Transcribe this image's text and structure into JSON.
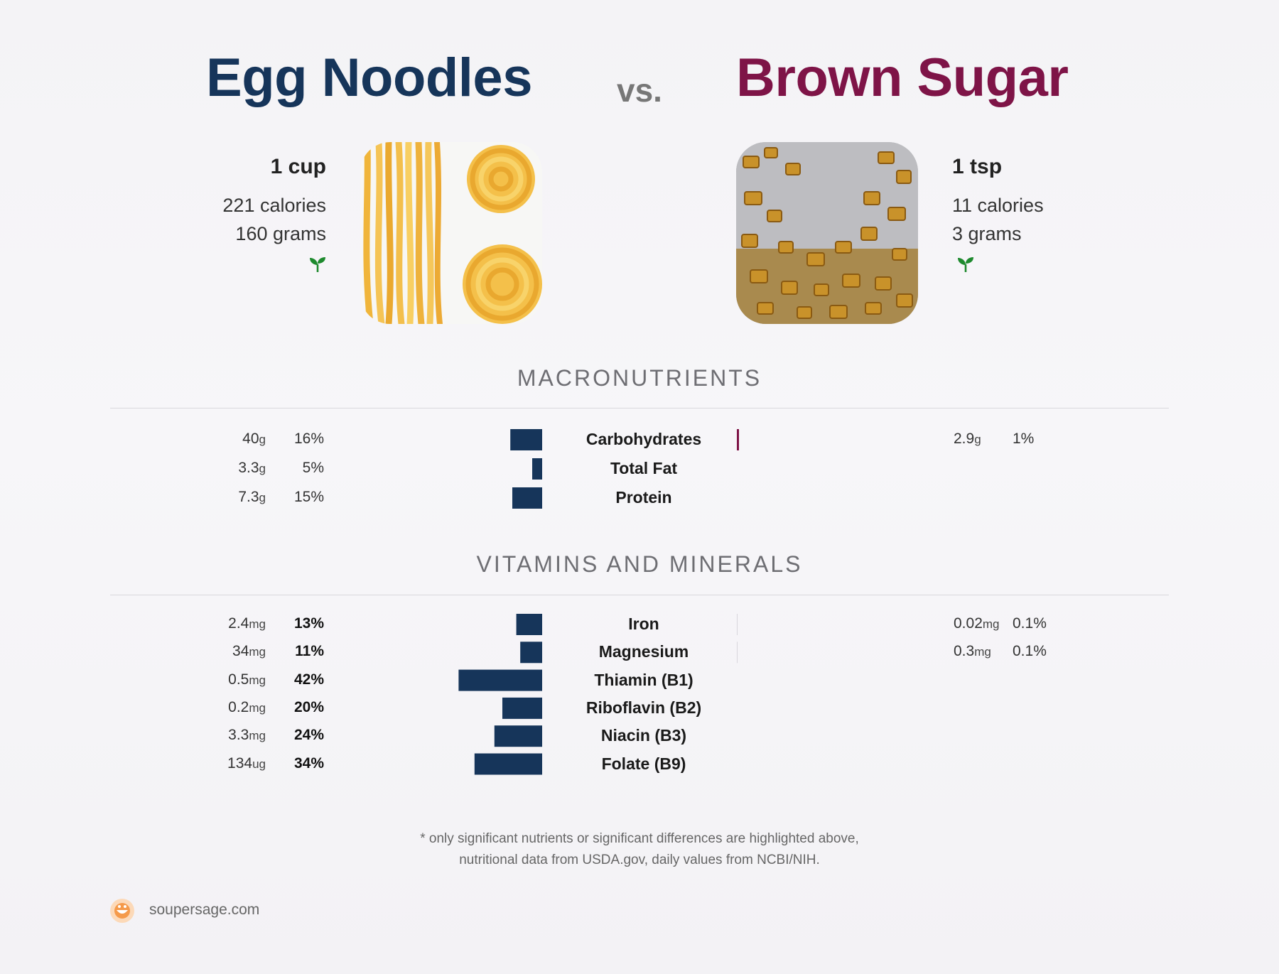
{
  "header": {
    "left_food": "Egg Noodles",
    "vs": "vs.",
    "right_food": "Brown Sugar"
  },
  "left": {
    "serving": "1 cup",
    "calories": "221 calories",
    "grams": "160 grams",
    "icon": "sprout-icon",
    "photo": "egg-noodles-photo"
  },
  "right": {
    "serving": "1 tsp",
    "calories": "11 calories",
    "grams": "3 grams",
    "icon": "sprout-icon",
    "photo": "brown-sugar-photo"
  },
  "colors": {
    "left": "#16355a",
    "right": "#7e1447",
    "sprout": "#1e8a2e"
  },
  "sections": {
    "macros": "MACRONUTRIENTS",
    "vitamins": "VITAMINS AND MINERALS"
  },
  "chart_data": [
    {
      "type": "bar",
      "section": "MACRONUTRIENTS",
      "categories": [
        "Carbohydrates",
        "Total Fat",
        "Protein"
      ],
      "series": [
        {
          "name": "Egg Noodles",
          "amounts": [
            "40",
            "3.3",
            "7.3"
          ],
          "units": [
            "g",
            "g",
            "g"
          ],
          "values": [
            16,
            5,
            15
          ],
          "pct_labels": [
            "16%",
            "5%",
            "15%"
          ]
        },
        {
          "name": "Brown Sugar",
          "amounts": [
            "2.9",
            "",
            ""
          ],
          "units": [
            "g",
            "",
            ""
          ],
          "values": [
            1,
            null,
            null
          ],
          "pct_labels": [
            "1%",
            "",
            ""
          ]
        }
      ]
    },
    {
      "type": "bar",
      "section": "VITAMINS AND MINERALS",
      "categories": [
        "Iron",
        "Magnesium",
        "Thiamin (B1)",
        "Riboflavin (B2)",
        "Niacin (B3)",
        "Folate (B9)"
      ],
      "series": [
        {
          "name": "Egg Noodles",
          "amounts": [
            "2.4",
            "34",
            "0.5",
            "0.2",
            "3.3",
            "134"
          ],
          "units": [
            "mg",
            "mg",
            "mg",
            "mg",
            "mg",
            "ug"
          ],
          "values": [
            13,
            11,
            42,
            20,
            24,
            34
          ],
          "pct_labels": [
            "13%",
            "11%",
            "42%",
            "20%",
            "24%",
            "34%"
          ]
        },
        {
          "name": "Brown Sugar",
          "amounts": [
            "0.02",
            "0.3",
            "",
            "",
            "",
            ""
          ],
          "units": [
            "mg",
            "mg",
            "",
            "",
            "",
            ""
          ],
          "values": [
            0.1,
            0.1,
            null,
            null,
            null,
            null
          ],
          "pct_labels": [
            "0.1%",
            "0.1%",
            "",
            "",
            "",
            ""
          ]
        }
      ]
    }
  ],
  "footnote": {
    "line1": "* only significant nutrients or significant differences are highlighted above,",
    "line2": "nutritional data from USDA.gov, daily values from NCBI/NIH."
  },
  "brand": {
    "site": "soupersage.com",
    "logo": "soupersage-logo-icon"
  }
}
